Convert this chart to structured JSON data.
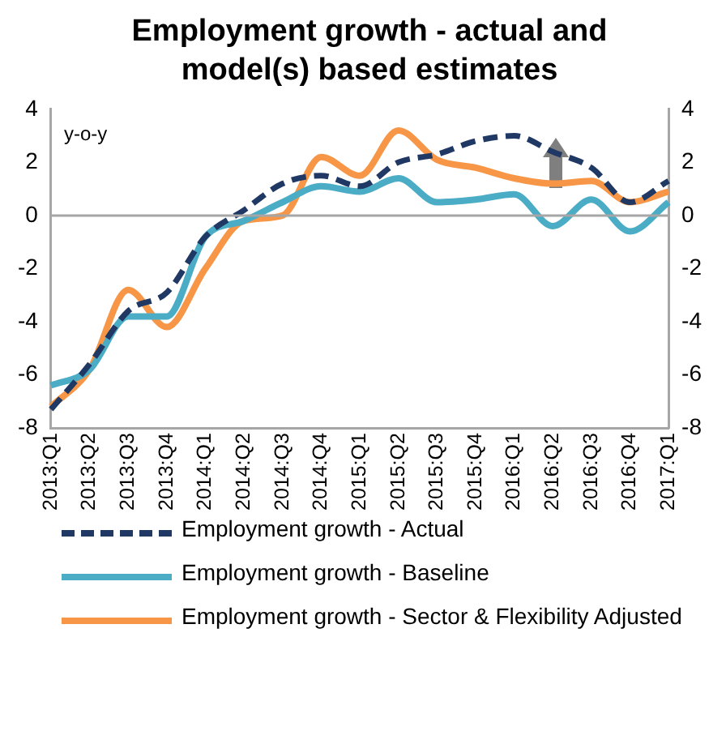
{
  "chart_data": {
    "type": "line",
    "title": "Employment growth - actual and model(s) based estimates",
    "ylabel": "y-o-y",
    "categories": [
      "2013:Q1",
      "2013:Q2",
      "2013:Q3",
      "2013:Q4",
      "2014:Q1",
      "2014:Q2",
      "2014:Q3",
      "2014:Q4",
      "2015:Q1",
      "2015:Q2",
      "2015:Q3",
      "2015:Q4",
      "2016:Q1",
      "2016:Q2",
      "2016:Q3",
      "2016:Q4",
      "2017:Q1"
    ],
    "series": [
      {
        "name": "Employment growth - Actual",
        "color": "#1f3864",
        "line_style": "dashed",
        "values": [
          -7.3,
          -5.6,
          -3.6,
          -2.9,
          -0.8,
          0.2,
          1.2,
          1.5,
          1.1,
          2.0,
          2.3,
          2.8,
          3.0,
          2.4,
          1.8,
          0.5,
          1.3
        ]
      },
      {
        "name": "Employment growth - Baseline",
        "color": "#4bacc6",
        "line_style": "solid",
        "values": [
          -6.4,
          -5.8,
          -3.8,
          -3.8,
          -0.8,
          -0.2,
          0.5,
          1.1,
          0.9,
          1.4,
          0.5,
          0.6,
          0.8,
          -0.4,
          0.6,
          -0.6,
          0.5
        ]
      },
      {
        "name": "Employment growth - Sector & Flexibility Adjusted",
        "color": "#f79646",
        "line_style": "solid",
        "values": [
          -7.2,
          -5.8,
          -2.8,
          -4.2,
          -2.0,
          -0.2,
          0.0,
          2.2,
          1.5,
          3.2,
          2.1,
          1.8,
          1.4,
          1.2,
          1.3,
          0.5,
          0.9
        ]
      }
    ],
    "ylim": [
      -8,
      4
    ],
    "yticks": [
      -8,
      -6,
      -4,
      -2,
      0,
      2,
      4
    ],
    "y2lim": [
      -8,
      4
    ],
    "y2ticks": [
      -8,
      -6,
      -4,
      -2,
      0,
      2,
      4
    ],
    "ref_lines": [
      {
        "axis": "y",
        "value": 0,
        "color": "#a6a6a6"
      }
    ],
    "grid": false,
    "legend": "bottom",
    "marker": "none"
  }
}
